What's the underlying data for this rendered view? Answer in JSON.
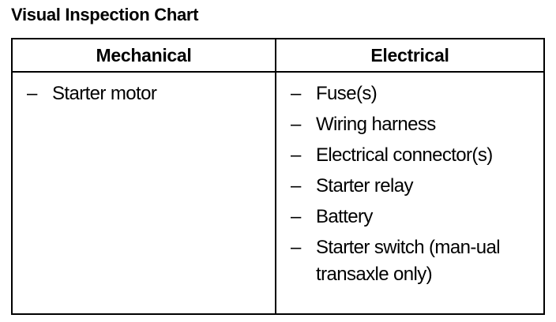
{
  "title": "Visual Inspection Chart",
  "table": {
    "headers": [
      "Mechanical",
      "Electrical"
    ],
    "bullet": "–",
    "mechanical": [
      "Starter motor"
    ],
    "electrical": [
      "Fuse(s)",
      "Wiring harness",
      "Electrical connector(s)",
      "Starter relay",
      "Battery",
      "Starter switch (man-ual transaxle only)"
    ]
  }
}
